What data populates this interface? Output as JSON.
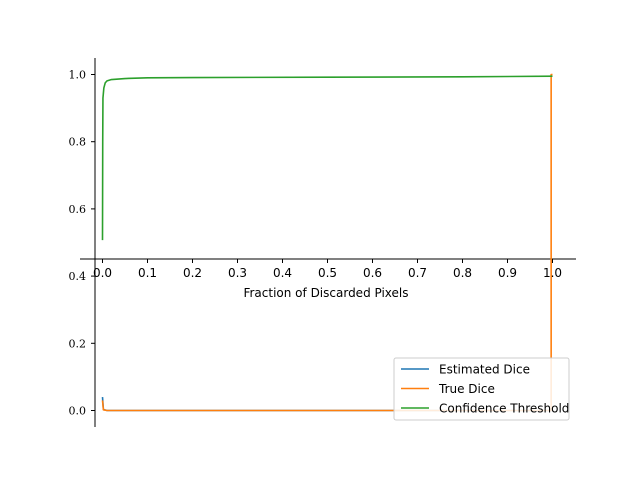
{
  "chart_data": {
    "type": "line",
    "title": "",
    "xlabel": "Fraction of Discarded Pixels",
    "ylabel": "",
    "xlim": [
      -0.02,
      1.05
    ],
    "ylim": [
      -0.05,
      1.05
    ],
    "x_ticks": [
      "0.0",
      "0.1",
      "0.2",
      "0.3",
      "0.4",
      "0.5",
      "0.6",
      "0.7",
      "0.8",
      "0.9",
      "1.0"
    ],
    "y_ticks": [
      "0.0",
      "0.2",
      "0.4",
      "0.6",
      "0.8",
      "1.0"
    ],
    "grid": false,
    "legend_position": "bottom-right",
    "series": [
      {
        "name": "Estimated Dice",
        "color": "#1f77b4",
        "x": [
          0.0,
          0.002,
          0.01,
          0.5,
          0.99,
          1.0
        ],
        "y": [
          0.04,
          0.003,
          0.0,
          0.0,
          0.0,
          0.0
        ]
      },
      {
        "name": "True Dice",
        "color": "#ff7f0e",
        "x": [
          0.0,
          0.002,
          0.01,
          0.5,
          0.995,
          0.997,
          0.997,
          1.0
        ],
        "y": [
          0.03,
          0.002,
          0.0,
          0.0,
          0.0,
          0.0,
          1.0,
          1.0
        ]
      },
      {
        "name": "Confidence Threshold",
        "color": "#2ca02c",
        "x": [
          0.0,
          0.0005,
          0.001,
          0.003,
          0.006,
          0.01,
          0.02,
          0.05,
          0.1,
          0.2,
          0.5,
          0.8,
          1.0
        ],
        "y": [
          0.507,
          0.8,
          0.93,
          0.96,
          0.975,
          0.981,
          0.985,
          0.988,
          0.99,
          0.991,
          0.992,
          0.993,
          0.995
        ]
      }
    ]
  }
}
